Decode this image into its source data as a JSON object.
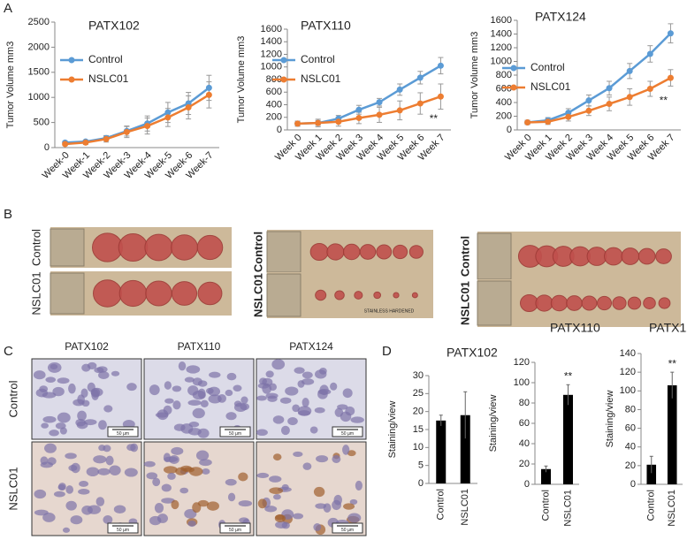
{
  "chart_data": [
    {
      "type": "line",
      "title": "PATX102",
      "y_label": "Tumor Volume mm3",
      "categories": [
        "Week-0",
        "Week-1",
        "Week-2",
        "Week-3",
        "Week-4",
        "Week-5",
        "Week-6",
        "Week-7"
      ],
      "ylim": [
        0,
        2500
      ],
      "yticks": [
        0,
        500,
        1000,
        1500,
        2000,
        2500
      ],
      "series": [
        {
          "name": "Control",
          "color": "#5b9bd5",
          "values": [
            100,
            120,
            190,
            330,
            480,
            700,
            880,
            1190
          ],
          "errors": [
            30,
            30,
            50,
            100,
            150,
            200,
            220,
            250
          ]
        },
        {
          "name": "NSLC01",
          "color": "#ed7d31",
          "values": [
            70,
            100,
            170,
            310,
            430,
            600,
            800,
            1050
          ],
          "errors": [
            30,
            40,
            60,
            110,
            160,
            180,
            230,
            260
          ]
        }
      ]
    },
    {
      "type": "line",
      "title": "PATX110",
      "y_label": "Tumor Volume mm3",
      "annotation": "**",
      "categories": [
        "Week 0",
        "Week 1",
        "Week 2",
        "Week 3",
        "Week 4",
        "Week 5",
        "Week 6",
        "Week 7"
      ],
      "ylim": [
        0,
        1600
      ],
      "yticks": [
        0,
        200,
        400,
        600,
        800,
        1000,
        1200,
        1400,
        1600
      ],
      "series": [
        {
          "name": "Control",
          "color": "#5b9bd5",
          "values": [
            100,
            110,
            180,
            320,
            440,
            640,
            830,
            1020
          ],
          "errors": [
            40,
            40,
            50,
            70,
            60,
            90,
            100,
            130
          ]
        },
        {
          "name": "NSLC01",
          "color": "#ed7d31",
          "values": [
            100,
            110,
            130,
            190,
            240,
            310,
            420,
            530
          ],
          "errors": [
            40,
            60,
            70,
            90,
            120,
            150,
            170,
            200
          ]
        }
      ]
    },
    {
      "type": "line",
      "title": "PATX124",
      "y_label": "Tumor Volume mm3",
      "annotation": "**",
      "categories": [
        "Week 0",
        "Week 1",
        "Week 2",
        "Week 3",
        "Week 4",
        "Week 5",
        "Week 6",
        "Week 7"
      ],
      "ylim": [
        0,
        1600
      ],
      "yticks": [
        0,
        200,
        400,
        600,
        800,
        1000,
        1200,
        1400,
        1600
      ],
      "series": [
        {
          "name": "Control",
          "color": "#5b9bd5",
          "values": [
            110,
            140,
            250,
            430,
            610,
            860,
            1110,
            1410
          ],
          "errors": [
            30,
            40,
            60,
            80,
            100,
            110,
            120,
            140
          ]
        },
        {
          "name": "NSLC01",
          "color": "#ed7d31",
          "values": [
            110,
            120,
            190,
            280,
            380,
            480,
            600,
            760
          ],
          "errors": [
            30,
            40,
            60,
            70,
            100,
            120,
            110,
            120
          ]
        }
      ]
    },
    {
      "type": "bar",
      "title": "PATX102",
      "y_label": "Staining/view",
      "categories": [
        "Control",
        "NSLC01"
      ],
      "values": [
        17.5,
        19
      ],
      "errors": [
        1.5,
        6.5
      ],
      "significance": [
        null,
        null
      ],
      "color": "#000000",
      "ylim": [
        0,
        30
      ],
      "yticks": [
        0,
        5,
        10,
        15,
        20,
        25,
        30
      ]
    },
    {
      "type": "bar",
      "title": "PATX110",
      "y_label": "Staining/view",
      "categories": [
        "Control",
        "NSLC01"
      ],
      "values": [
        15,
        88
      ],
      "errors": [
        3,
        10
      ],
      "significance": [
        null,
        "**"
      ],
      "color": "#000000",
      "ylim": [
        0,
        120
      ],
      "yticks": [
        0,
        20,
        40,
        60,
        80,
        100,
        120
      ]
    },
    {
      "type": "bar",
      "title": "PATX124",
      "y_label": "Staining/view",
      "categories": [
        "Control",
        "NSLC01"
      ],
      "values": [
        21,
        106
      ],
      "errors": [
        9,
        14
      ],
      "significance": [
        null,
        "**"
      ],
      "color": "#000000",
      "ylim": [
        0,
        140
      ],
      "yticks": [
        0,
        20,
        40,
        60,
        80,
        100,
        120,
        140
      ]
    }
  ],
  "panel_labels": [
    "A",
    "B",
    "C",
    "D"
  ],
  "tumor_photos": {
    "row_labels": [
      "Control",
      "NSLC01"
    ],
    "ruler_text": "STAINLESS HARDENED"
  },
  "histology": {
    "columns": [
      "PATX102",
      "PATX110",
      "PATX124"
    ],
    "rows": [
      "Control",
      "NSLC01"
    ],
    "scale_bar": "50 µm"
  }
}
